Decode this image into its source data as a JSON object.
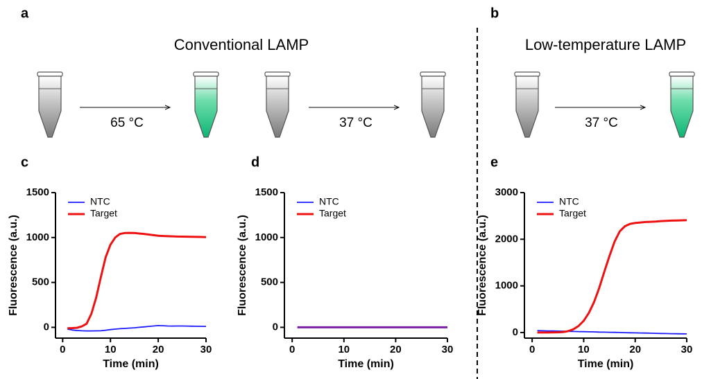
{
  "figure": {
    "panels": [
      "a",
      "b",
      "c",
      "d",
      "e"
    ],
    "titles": [
      "Conventional LAMP",
      "Low-temperature LAMP"
    ],
    "temperatures": [
      "65 °C",
      "37 °C",
      "37 °C"
    ]
  },
  "chart_data": [
    {
      "type": "line",
      "xlabel": "Time (min)",
      "ylabel": "Fluorescence (a.u.)",
      "xlim": [
        -1.5,
        30
      ],
      "xticks": [
        0,
        10,
        20,
        30
      ],
      "ylim": [
        -120,
        1500
      ],
      "yticks": [
        0,
        500,
        1000,
        1500
      ],
      "x": [
        1,
        2,
        3,
        4,
        5,
        6,
        7,
        8,
        9,
        10,
        11,
        12,
        13,
        14,
        15,
        16,
        17,
        18,
        19,
        20,
        21,
        22,
        23,
        24,
        25,
        26,
        27,
        28,
        29,
        30
      ],
      "series": [
        {
          "name": "NTC",
          "color": "#1a1aff",
          "values": [
            -20,
            -30,
            -35,
            -38,
            -40,
            -40,
            -39,
            -38,
            -32,
            -25,
            -20,
            -15,
            -12,
            -8,
            -5,
            0,
            5,
            10,
            15,
            20,
            18,
            15,
            14,
            15,
            15,
            14,
            13,
            12,
            11,
            10
          ]
        },
        {
          "name": "Target",
          "color": "#ee1111",
          "values": [
            -10,
            -8,
            -5,
            10,
            40,
            150,
            330,
            560,
            780,
            920,
            1000,
            1040,
            1050,
            1052,
            1050,
            1045,
            1040,
            1033,
            1026,
            1020,
            1017,
            1015,
            1013,
            1011,
            1010,
            1009,
            1008,
            1007,
            1006,
            1005
          ]
        }
      ]
    },
    {
      "type": "line",
      "xlabel": "Time (min)",
      "ylabel": "Fluorescence (a.u.)",
      "xlim": [
        -1.5,
        30
      ],
      "xticks": [
        0,
        10,
        20,
        30
      ],
      "ylim": [
        -120,
        1500
      ],
      "yticks": [
        0,
        500,
        1000,
        1500
      ],
      "x": [
        1,
        2,
        3,
        4,
        5,
        6,
        7,
        8,
        9,
        10,
        11,
        12,
        13,
        14,
        15,
        16,
        17,
        18,
        19,
        20,
        21,
        22,
        23,
        24,
        25,
        26,
        27,
        28,
        29,
        30
      ],
      "series": [
        {
          "name": "NTC",
          "color": "#1a1aff",
          "values": [
            0,
            0,
            0,
            0,
            0,
            0,
            0,
            0,
            0,
            0,
            0,
            0,
            0,
            0,
            0,
            0,
            0,
            0,
            0,
            0,
            0,
            0,
            0,
            0,
            0,
            0,
            0,
            0,
            0,
            0
          ]
        },
        {
          "name": "Target",
          "color": "#ee1111",
          "values": [
            0,
            0,
            0,
            0,
            0,
            0,
            0,
            0,
            0,
            0,
            0,
            0,
            0,
            0,
            0,
            0,
            0,
            0,
            0,
            0,
            0,
            0,
            0,
            0,
            0,
            0,
            0,
            0,
            0,
            0
          ]
        }
      ],
      "line_color": "#7a1fa0"
    },
    {
      "type": "line",
      "xlabel": "Time (min)",
      "ylabel": "Fluorescence (a.u.)",
      "xlim": [
        -1.5,
        30
      ],
      "xticks": [
        0,
        10,
        20,
        30
      ],
      "ylim": [
        -120,
        3000
      ],
      "yticks": [
        0,
        1000,
        2000,
        3000
      ],
      "x": [
        1,
        2,
        3,
        4,
        5,
        6,
        7,
        8,
        9,
        10,
        11,
        12,
        13,
        14,
        15,
        16,
        17,
        18,
        19,
        20,
        21,
        22,
        23,
        24,
        25,
        26,
        27,
        28,
        29,
        30
      ],
      "series": [
        {
          "name": "NTC",
          "color": "#1a1aff",
          "values": [
            40,
            38,
            35,
            33,
            30,
            28,
            25,
            23,
            20,
            18,
            15,
            13,
            10,
            8,
            5,
            3,
            0,
            -2,
            -5,
            -7,
            -10,
            -12,
            -15,
            -17,
            -20,
            -22,
            -25,
            -27,
            -28,
            -30
          ]
        },
        {
          "name": "Target",
          "color": "#ee1111",
          "values": [
            0,
            0,
            0,
            2,
            5,
            10,
            30,
            70,
            140,
            250,
            420,
            650,
            950,
            1300,
            1640,
            1950,
            2170,
            2280,
            2330,
            2350,
            2360,
            2370,
            2375,
            2380,
            2390,
            2395,
            2400,
            2403,
            2406,
            2410
          ]
        }
      ]
    }
  ]
}
